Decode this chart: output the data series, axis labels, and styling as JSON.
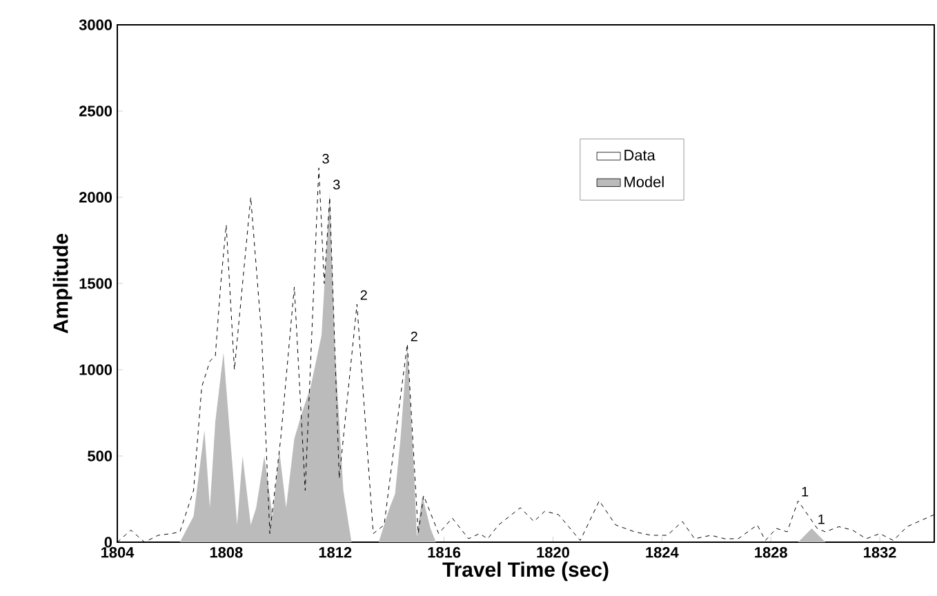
{
  "chart_data": {
    "type": "line",
    "xlabel": "Travel Time (sec)",
    "ylabel": "Amplitude",
    "xlim": [
      1804,
      1834
    ],
    "ylim": [
      0,
      3000
    ],
    "xticks": [
      1804,
      1808,
      1812,
      1816,
      1820,
      1824,
      1828,
      1832
    ],
    "yticks": [
      0,
      500,
      1000,
      1500,
      2000,
      2500,
      3000
    ],
    "legend": "top",
    "grid": false,
    "series": [
      {
        "name": "Data",
        "color": "#000000",
        "line_style": "dashed",
        "x": [
          1804.0,
          1804.5,
          1805.0,
          1805.5,
          1806.0,
          1806.3,
          1806.8,
          1807.1,
          1807.4,
          1807.6,
          1807.8,
          1808.0,
          1808.3,
          1808.9,
          1809.3,
          1809.6,
          1810.0,
          1810.5,
          1810.9,
          1811.4,
          1811.6,
          1811.8,
          1812.15,
          1812.8,
          1813.4,
          1813.8,
          1814.2,
          1814.65,
          1815.05,
          1815.25,
          1815.8,
          1816.3,
          1816.9,
          1817.3,
          1817.6,
          1818.0,
          1818.8,
          1819.3,
          1819.7,
          1820.2,
          1821.0,
          1821.7,
          1822.3,
          1823.0,
          1823.6,
          1824.2,
          1824.75,
          1825.2,
          1825.8,
          1826.3,
          1826.8,
          1827.5,
          1827.8,
          1828.2,
          1828.6,
          1829.0,
          1829.7,
          1830.0,
          1830.5,
          1831.0,
          1831.5,
          1832.0,
          1832.5,
          1833.0,
          1834.0
        ],
        "values": [
          0,
          70,
          0,
          40,
          50,
          60,
          300,
          900,
          1050,
          1080,
          1500,
          1840,
          1000,
          2000,
          1200,
          50,
          600,
          1480,
          300,
          2170,
          1500,
          2000,
          370,
          1380,
          50,
          100,
          600,
          1150,
          50,
          270,
          50,
          140,
          20,
          50,
          20,
          100,
          200,
          120,
          180,
          160,
          10,
          240,
          100,
          60,
          40,
          40,
          120,
          20,
          40,
          20,
          20,
          100,
          10,
          80,
          60,
          240,
          80,
          60,
          90,
          70,
          20,
          50,
          10,
          90,
          160
        ]
      },
      {
        "name": "Model",
        "type": "area",
        "color": "#bbbbbb",
        "x": [
          1804.0,
          1806.3,
          1806.8,
          1807.2,
          1807.4,
          1807.6,
          1807.9,
          1808.2,
          1808.4,
          1808.6,
          1808.9,
          1809.1,
          1809.4,
          1809.7,
          1809.95,
          1810.2,
          1810.5,
          1810.8,
          1811.1,
          1811.5,
          1811.8,
          1812.0,
          1812.3,
          1812.6,
          1813.6,
          1814.0,
          1814.2,
          1814.4,
          1814.65,
          1814.9,
          1815.0,
          1815.2,
          1815.5,
          1815.7,
          1829.0,
          1829.5,
          1830.0,
          1834.0
        ],
        "values": [
          0,
          0,
          150,
          650,
          200,
          700,
          1100,
          500,
          100,
          500,
          100,
          200,
          500,
          150,
          530,
          200,
          600,
          760,
          900,
          1200,
          2020,
          1100,
          300,
          0,
          0,
          200,
          280,
          600,
          1140,
          400,
          30,
          270,
          80,
          0,
          0,
          80,
          0,
          0
        ]
      }
    ],
    "annotations": [
      {
        "text": "3",
        "x": 1811.4,
        "y": 2170
      },
      {
        "text": "3",
        "x": 1811.8,
        "y": 2020
      },
      {
        "text": "2",
        "x": 1812.8,
        "y": 1380
      },
      {
        "text": "2",
        "x": 1814.65,
        "y": 1140
      },
      {
        "text": "1",
        "x": 1829.0,
        "y": 240
      },
      {
        "text": "1",
        "x": 1829.6,
        "y": 80
      }
    ]
  }
}
